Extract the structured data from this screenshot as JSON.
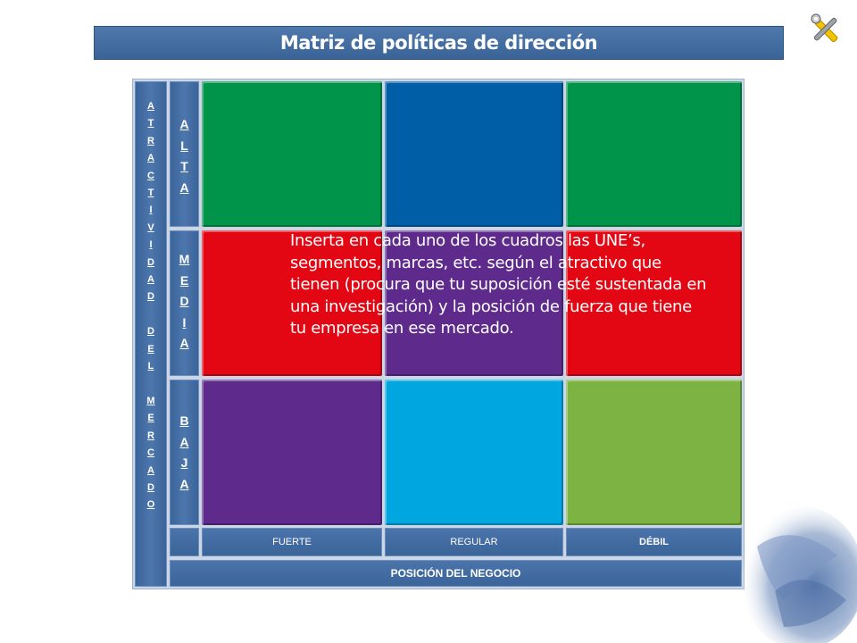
{
  "title": "Matriz de políticas de dirección",
  "icon": "tools-icon",
  "y_axis": {
    "label": "A\nT\nR\nA\nC\nT\nI\nV\nI\nD\nA\nD\n\nD\nE\nL\n\nM\nE\nR\nC\nA\nD\nO",
    "rows": [
      {
        "label": "A\nL\nT\nA"
      },
      {
        "label": "M\nE\nD\nI\nA"
      },
      {
        "label": "B\nA\nJ\nA"
      }
    ]
  },
  "x_axis": {
    "label": "POSICIÓN  DEL NEGOCIO",
    "columns": [
      {
        "label": "FUERTE"
      },
      {
        "label": "REGULAR"
      },
      {
        "label": "DÉBIL"
      }
    ]
  },
  "cells": [
    [
      "#00944a",
      "#005ea6",
      "#00944a"
    ],
    [
      "#e30613",
      "#5e2b8c",
      "#e30613"
    ],
    [
      "#5e2b8c",
      "#00a6e0",
      "#7cb342"
    ]
  ],
  "instruction": "Inserta en cada uno de los cuadros las UNE’s, segmentos, marcas, etc. según el atractivo que tienen (procura que tu suposición esté sustentada en una investigación) y la posición de fuerza que tiene tu empresa en ese mercado."
}
